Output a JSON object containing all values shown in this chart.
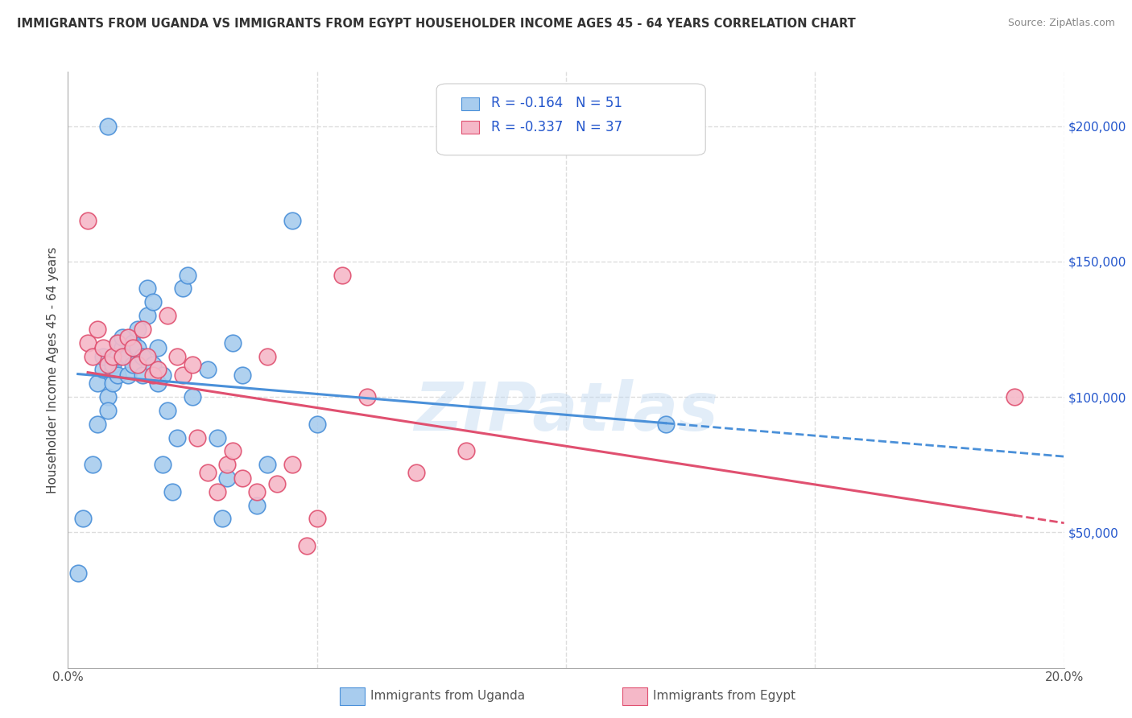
{
  "title": "IMMIGRANTS FROM UGANDA VS IMMIGRANTS FROM EGYPT HOUSEHOLDER INCOME AGES 45 - 64 YEARS CORRELATION CHART",
  "source": "Source: ZipAtlas.com",
  "ylabel": "Householder Income Ages 45 - 64 years",
  "xlim": [
    0.0,
    0.2
  ],
  "ylim": [
    0,
    220000
  ],
  "uganda_R": -0.164,
  "uganda_N": 51,
  "egypt_R": -0.337,
  "egypt_N": 37,
  "uganda_color": "#A8CCEE",
  "egypt_color": "#F5B8C8",
  "uganda_line_color": "#4A90D9",
  "egypt_line_color": "#E05070",
  "legend_r_color": "#2255CC",
  "background_color": "#FFFFFF",
  "grid_color": "#DDDDDD",
  "watermark": "ZIPatlas",
  "uganda_x": [
    0.002,
    0.003,
    0.005,
    0.006,
    0.006,
    0.007,
    0.007,
    0.008,
    0.008,
    0.009,
    0.009,
    0.009,
    0.01,
    0.01,
    0.01,
    0.011,
    0.011,
    0.012,
    0.012,
    0.013,
    0.013,
    0.014,
    0.014,
    0.015,
    0.015,
    0.016,
    0.016,
    0.017,
    0.017,
    0.018,
    0.018,
    0.019,
    0.019,
    0.02,
    0.021,
    0.022,
    0.023,
    0.024,
    0.025,
    0.028,
    0.03,
    0.031,
    0.032,
    0.033,
    0.035,
    0.038,
    0.04,
    0.045,
    0.05,
    0.12,
    0.008
  ],
  "uganda_y": [
    35000,
    55000,
    75000,
    90000,
    105000,
    110000,
    115000,
    100000,
    95000,
    105000,
    110000,
    112000,
    108000,
    115000,
    120000,
    118000,
    122000,
    115000,
    108000,
    120000,
    112000,
    118000,
    125000,
    115000,
    108000,
    130000,
    140000,
    135000,
    112000,
    118000,
    105000,
    108000,
    75000,
    95000,
    65000,
    85000,
    140000,
    145000,
    100000,
    110000,
    85000,
    55000,
    70000,
    120000,
    108000,
    60000,
    75000,
    165000,
    90000,
    90000,
    200000
  ],
  "egypt_x": [
    0.004,
    0.005,
    0.006,
    0.007,
    0.008,
    0.009,
    0.01,
    0.011,
    0.012,
    0.013,
    0.014,
    0.015,
    0.016,
    0.017,
    0.018,
    0.02,
    0.022,
    0.023,
    0.025,
    0.026,
    0.028,
    0.03,
    0.032,
    0.033,
    0.035,
    0.038,
    0.04,
    0.042,
    0.045,
    0.048,
    0.05,
    0.055,
    0.06,
    0.07,
    0.08,
    0.19,
    0.004
  ],
  "egypt_y": [
    120000,
    115000,
    125000,
    118000,
    112000,
    115000,
    120000,
    115000,
    122000,
    118000,
    112000,
    125000,
    115000,
    108000,
    110000,
    130000,
    115000,
    108000,
    112000,
    85000,
    72000,
    65000,
    75000,
    80000,
    70000,
    65000,
    115000,
    68000,
    75000,
    45000,
    55000,
    145000,
    100000,
    72000,
    80000,
    100000,
    165000
  ]
}
